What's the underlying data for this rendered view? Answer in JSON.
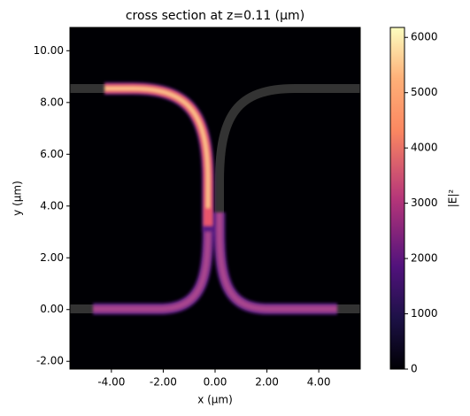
{
  "chart_data": {
    "type": "heatmap",
    "title": "cross section at z=0.11 (µm)",
    "xlabel": "x (µm)",
    "ylabel": "y (µm)",
    "xlim": [
      -5.6,
      5.6
    ],
    "ylim": [
      -2.3,
      10.9
    ],
    "xticks": [
      {
        "value": -4,
        "label": "-4.00"
      },
      {
        "value": -2,
        "label": "-2.00"
      },
      {
        "value": 0,
        "label": "0.00"
      },
      {
        "value": 2,
        "label": "2.00"
      },
      {
        "value": 4,
        "label": "4.00"
      }
    ],
    "yticks": [
      {
        "value": -2,
        "label": "-2.00"
      },
      {
        "value": 0,
        "label": "0.00"
      },
      {
        "value": 2,
        "label": "2.00"
      },
      {
        "value": 4,
        "label": "4.00"
      },
      {
        "value": 6,
        "label": "6.00"
      },
      {
        "value": 8,
        "label": "8.00"
      },
      {
        "value": 10,
        "label": "10.00"
      }
    ],
    "colorbar": {
      "label": "|E|²",
      "lim": [
        0,
        6180
      ],
      "ticks": [
        0,
        1000,
        2000,
        3000,
        4000,
        5000,
        6000
      ]
    }
  }
}
